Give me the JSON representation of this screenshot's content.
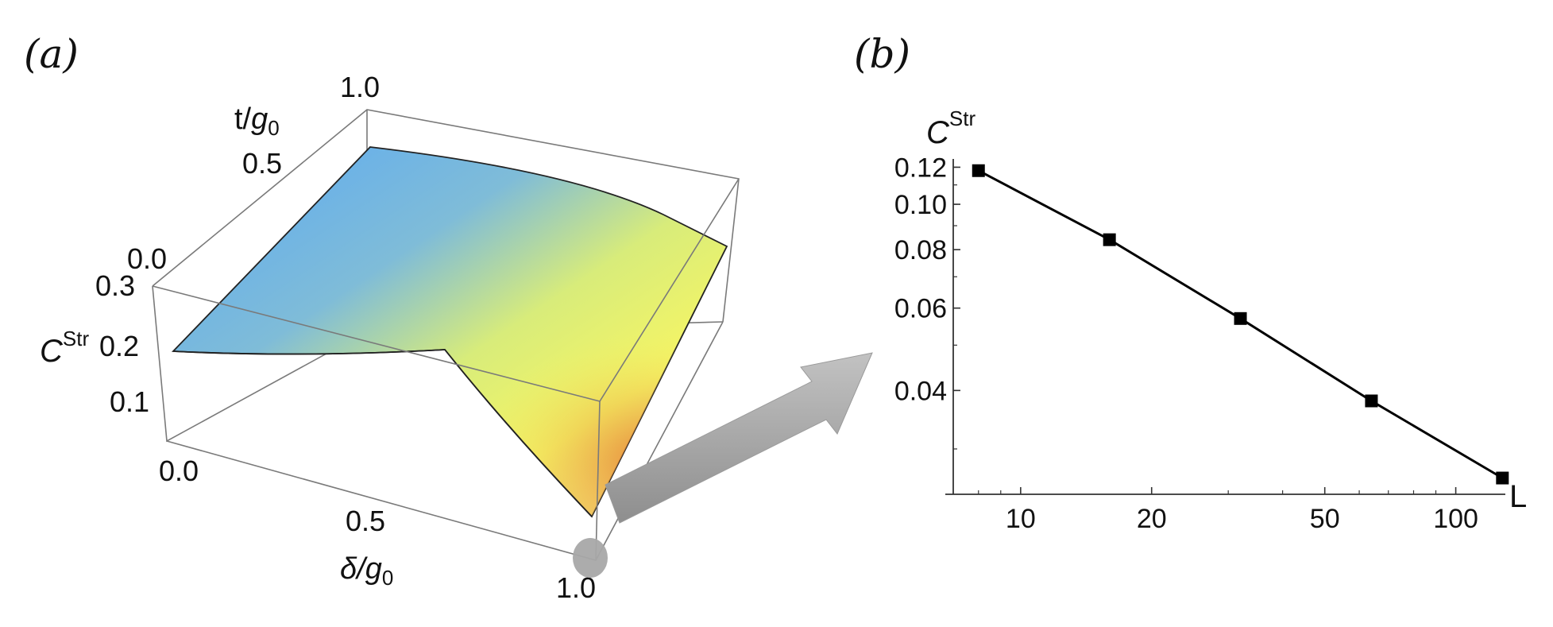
{
  "panel_a": {
    "label": "(a)",
    "z_axis_label": "C",
    "z_axis_sup": "Str",
    "t_axis_label": "t/",
    "t_axis_g": "g",
    "t_axis_sub": "0",
    "d_axis_label": "δ/",
    "d_axis_g": "g",
    "d_axis_sub": "0",
    "t_ticks": [
      "1.0",
      "0.5",
      "0.0"
    ],
    "z_ticks": [
      "0.3",
      "0.2",
      "0.1"
    ],
    "d_ticks": [
      "0.0",
      "0.5",
      "1.0"
    ],
    "colors": {
      "surface_blue": "#5aa9f5",
      "surface_yellow": "#f2f263",
      "surface_orange": "#e5762a",
      "arrow": "#a8a8a8"
    }
  },
  "panel_b": {
    "label": "(b)",
    "y_axis_label": "C",
    "y_axis_sup": "Str",
    "x_axis_label": "L"
  },
  "chart_data": [
    {
      "type": "surface",
      "x_label": "δ/g0",
      "y_label": "t/g0",
      "z_label": "C^Str",
      "x_range": [
        0.0,
        1.0
      ],
      "y_range": [
        0.0,
        1.0
      ],
      "z_range": [
        0.0,
        0.3
      ],
      "x_ticks": [
        0.0,
        0.5,
        1.0
      ],
      "y_ticks": [
        0.0,
        0.5,
        1.0
      ],
      "z_ticks": [
        0.1,
        0.2,
        0.3
      ],
      "corner_values": [
        {
          "delta": 0.0,
          "t": 0.0,
          "C": 0.18
        },
        {
          "delta": 0.0,
          "t": 1.0,
          "C": 0.29
        },
        {
          "delta": 1.0,
          "t": 1.0,
          "C": 0.19
        },
        {
          "delta": 1.0,
          "t": 0.0,
          "C": 0.0
        }
      ],
      "colormap": [
        "#5aa9f5",
        "#f2f263",
        "#e5762a"
      ]
    },
    {
      "type": "line",
      "scale": "log-log",
      "x_label": "L",
      "y_label": "C^Str",
      "x_ticks": [
        10,
        20,
        50,
        100
      ],
      "y_ticks": [
        0.04,
        0.06,
        0.08,
        0.1,
        0.12
      ],
      "xlim": [
        7,
        130
      ],
      "ylim": [
        0.024,
        0.125
      ],
      "series": [
        {
          "x": [
            8,
            16,
            32,
            64,
            128
          ],
          "y": [
            0.118,
            0.084,
            0.057,
            0.038,
            0.026
          ]
        }
      ],
      "marker": "square",
      "grid": false
    }
  ]
}
